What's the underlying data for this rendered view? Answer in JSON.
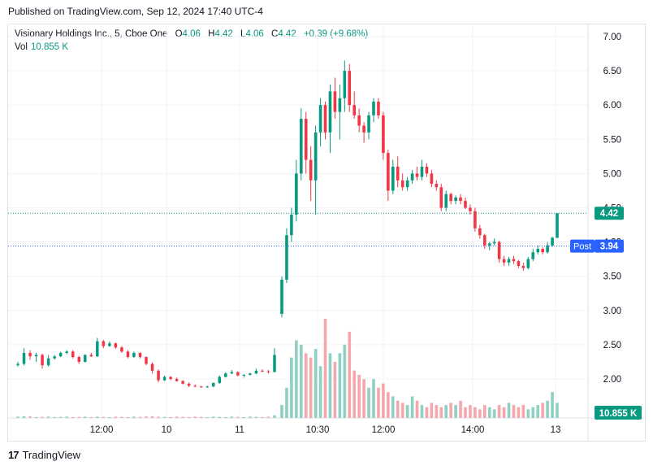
{
  "header": {
    "published": "Published on TradingView.com, Sep 12, 2024 17:40 UTC-4"
  },
  "legend": {
    "symbol": "Visionary Holdings Inc., 5, Cboe One",
    "o_label": "O",
    "o": "4.06",
    "h_label": "H",
    "h": "4.42",
    "l_label": "L",
    "l": "4.06",
    "c_label": "C",
    "c": "4.42",
    "change": "+0.39 (+9.68%)",
    "vol_label": "Vol",
    "vol": "10.855 K"
  },
  "footer": {
    "brand": "TradingView",
    "logo": "17"
  },
  "colors": {
    "up": "#089981",
    "down": "#f23645",
    "vol_up": "#8fd0c2",
    "vol_down": "#f5a7ac",
    "post": "#2962ff"
  },
  "chart_data": {
    "type": "candlestick",
    "y_ticks": [
      "7.00",
      "6.50",
      "6.00",
      "5.50",
      "5.00",
      "4.50",
      "4.00",
      "3.50",
      "3.00",
      "2.50",
      "2.00"
    ],
    "x_ticks": [
      "12:00",
      "10",
      "11",
      "10:30",
      "12:00",
      "14:00",
      "13"
    ],
    "ylim": [
      1.5,
      7.25
    ],
    "last_price": {
      "value": 4.42,
      "label": "4.42"
    },
    "post_price": {
      "label_text": "Post",
      "value": 3.94,
      "label": "3.94"
    },
    "volume_label": "10.855 K",
    "candles": [
      [
        2.2,
        2.25,
        2.18,
        2.22
      ],
      [
        2.22,
        2.45,
        2.2,
        2.38
      ],
      [
        2.38,
        2.42,
        2.28,
        2.33
      ],
      [
        2.33,
        2.38,
        2.25,
        2.35
      ],
      [
        2.35,
        2.37,
        2.15,
        2.2
      ],
      [
        2.2,
        2.35,
        2.18,
        2.3
      ],
      [
        2.3,
        2.35,
        2.28,
        2.33
      ],
      [
        2.33,
        2.4,
        2.32,
        2.38
      ],
      [
        2.38,
        2.42,
        2.36,
        2.4
      ],
      [
        2.4,
        2.42,
        2.3,
        2.32
      ],
      [
        2.32,
        2.34,
        2.22,
        2.25
      ],
      [
        2.25,
        2.36,
        2.24,
        2.35
      ],
      [
        2.35,
        2.38,
        2.32,
        2.33
      ],
      [
        2.33,
        2.6,
        2.32,
        2.55
      ],
      [
        2.55,
        2.57,
        2.45,
        2.48
      ],
      [
        2.48,
        2.55,
        2.47,
        2.52
      ],
      [
        2.52,
        2.53,
        2.44,
        2.46
      ],
      [
        2.46,
        2.48,
        2.38,
        2.4
      ],
      [
        2.4,
        2.42,
        2.3,
        2.32
      ],
      [
        2.32,
        2.4,
        2.31,
        2.38
      ],
      [
        2.38,
        2.39,
        2.3,
        2.32
      ],
      [
        2.32,
        2.33,
        2.2,
        2.22
      ],
      [
        2.22,
        2.24,
        2.08,
        2.12
      ],
      [
        2.12,
        2.14,
        1.95,
        1.98
      ],
      [
        1.98,
        2.05,
        1.97,
        2.03
      ],
      [
        2.03,
        2.04,
        1.98,
        2.0
      ],
      [
        2.0,
        2.02,
        1.96,
        1.97
      ],
      [
        1.97,
        1.98,
        1.92,
        1.93
      ],
      [
        1.93,
        1.95,
        1.88,
        1.9
      ],
      [
        1.9,
        1.92,
        1.88,
        1.89
      ],
      [
        1.89,
        1.9,
        1.87,
        1.88
      ],
      [
        1.88,
        1.9,
        1.87,
        1.89
      ],
      [
        1.89,
        1.95,
        1.88,
        1.94
      ],
      [
        1.94,
        2.05,
        1.93,
        2.03
      ],
      [
        2.03,
        2.1,
        2.02,
        2.08
      ],
      [
        2.08,
        2.13,
        2.07,
        2.1
      ],
      [
        2.1,
        2.11,
        2.04,
        2.05
      ],
      [
        2.05,
        2.07,
        2.02,
        2.06
      ],
      [
        2.06,
        2.09,
        2.05,
        2.08
      ],
      [
        2.08,
        2.15,
        2.07,
        2.12
      ],
      [
        2.12,
        2.14,
        2.1,
        2.11
      ],
      [
        2.11,
        2.13,
        2.08,
        2.1
      ],
      [
        2.1,
        2.45,
        2.1,
        2.35
      ],
      [
        2.95,
        3.5,
        2.9,
        3.45
      ],
      [
        3.45,
        4.2,
        3.4,
        4.1
      ],
      [
        4.1,
        4.5,
        4.0,
        4.4
      ],
      [
        4.4,
        5.2,
        4.3,
        5.0
      ],
      [
        5.0,
        5.95,
        4.9,
        5.8
      ],
      [
        5.8,
        5.9,
        5.0,
        5.2
      ],
      [
        5.2,
        5.4,
        4.6,
        4.9
      ],
      [
        4.9,
        5.7,
        4.4,
        5.6
      ],
      [
        5.6,
        6.1,
        5.4,
        6.0
      ],
      [
        6.0,
        6.05,
        5.5,
        5.6
      ],
      [
        5.6,
        6.3,
        5.3,
        6.2
      ],
      [
        6.2,
        6.4,
        5.8,
        5.9
      ],
      [
        5.9,
        6.3,
        5.5,
        6.1
      ],
      [
        6.1,
        6.65,
        5.9,
        6.5
      ],
      [
        6.5,
        6.6,
        5.9,
        6.0
      ],
      [
        6.0,
        6.2,
        5.8,
        5.85
      ],
      [
        5.85,
        5.95,
        5.6,
        5.7
      ],
      [
        5.7,
        5.75,
        5.45,
        5.6
      ],
      [
        5.6,
        5.9,
        5.5,
        5.85
      ],
      [
        5.85,
        6.1,
        5.75,
        6.05
      ],
      [
        6.05,
        6.1,
        5.8,
        5.85
      ],
      [
        5.85,
        5.9,
        5.2,
        5.3
      ],
      [
        5.3,
        5.35,
        4.6,
        4.75
      ],
      [
        4.75,
        5.2,
        4.7,
        5.1
      ],
      [
        5.1,
        5.25,
        4.8,
        4.9
      ],
      [
        4.9,
        5.0,
        4.75,
        4.8
      ],
      [
        4.8,
        4.95,
        4.75,
        4.9
      ],
      [
        4.9,
        5.05,
        4.85,
        5.0
      ],
      [
        5.0,
        5.1,
        4.9,
        4.95
      ],
      [
        4.95,
        5.2,
        4.9,
        5.1
      ],
      [
        5.1,
        5.15,
        4.95,
        5.0
      ],
      [
        5.0,
        5.05,
        4.8,
        4.85
      ],
      [
        4.85,
        4.9,
        4.75,
        4.8
      ],
      [
        4.8,
        4.85,
        4.45,
        4.5
      ],
      [
        4.5,
        4.75,
        4.45,
        4.7
      ],
      [
        4.7,
        4.72,
        4.55,
        4.6
      ],
      [
        4.6,
        4.68,
        4.55,
        4.65
      ],
      [
        4.65,
        4.7,
        4.55,
        4.6
      ],
      [
        4.6,
        4.65,
        4.48,
        4.5
      ],
      [
        4.5,
        4.55,
        4.4,
        4.45
      ],
      [
        4.45,
        4.5,
        4.15,
        4.2
      ],
      [
        4.2,
        4.25,
        4.05,
        4.1
      ],
      [
        4.1,
        4.12,
        3.9,
        3.95
      ],
      [
        3.95,
        4.0,
        3.88,
        3.98
      ],
      [
        3.98,
        4.05,
        3.95,
        4.0
      ],
      [
        4.0,
        4.02,
        3.7,
        3.75
      ],
      [
        3.75,
        3.8,
        3.65,
        3.7
      ],
      [
        3.7,
        3.78,
        3.65,
        3.75
      ],
      [
        3.75,
        3.8,
        3.68,
        3.72
      ],
      [
        3.72,
        3.74,
        3.62,
        3.65
      ],
      [
        3.65,
        3.7,
        3.58,
        3.62
      ],
      [
        3.62,
        3.78,
        3.6,
        3.75
      ],
      [
        3.75,
        3.9,
        3.72,
        3.85
      ],
      [
        3.85,
        3.95,
        3.82,
        3.9
      ],
      [
        3.9,
        3.92,
        3.82,
        3.85
      ],
      [
        3.85,
        4.0,
        3.83,
        3.95
      ],
      [
        3.95,
        4.08,
        3.93,
        4.06
      ],
      [
        4.06,
        4.42,
        4.06,
        4.42
      ]
    ],
    "volumes": [
      30,
      40,
      35,
      20,
      25,
      30,
      20,
      25,
      30,
      20,
      25,
      30,
      20,
      30,
      25,
      20,
      30,
      25,
      20,
      30,
      25,
      35,
      40,
      30,
      25,
      20,
      30,
      25,
      20,
      30,
      25,
      20,
      30,
      25,
      20,
      30,
      25,
      20,
      30,
      25,
      20,
      30,
      60,
      300,
      700,
      1400,
      1800,
      1700,
      1500,
      1400,
      1600,
      1200,
      2300,
      1500,
      1300,
      1500,
      1700,
      2000,
      1100,
      1000,
      900,
      700,
      900,
      700,
      800,
      600,
      500,
      400,
      350,
      300,
      500,
      400,
      300,
      250,
      350,
      300,
      250,
      300,
      350,
      300,
      400,
      250,
      300,
      250,
      200,
      300,
      250,
      200,
      300,
      250,
      350,
      300,
      250,
      300,
      200,
      250,
      300,
      350,
      400,
      600,
      350
    ]
  }
}
